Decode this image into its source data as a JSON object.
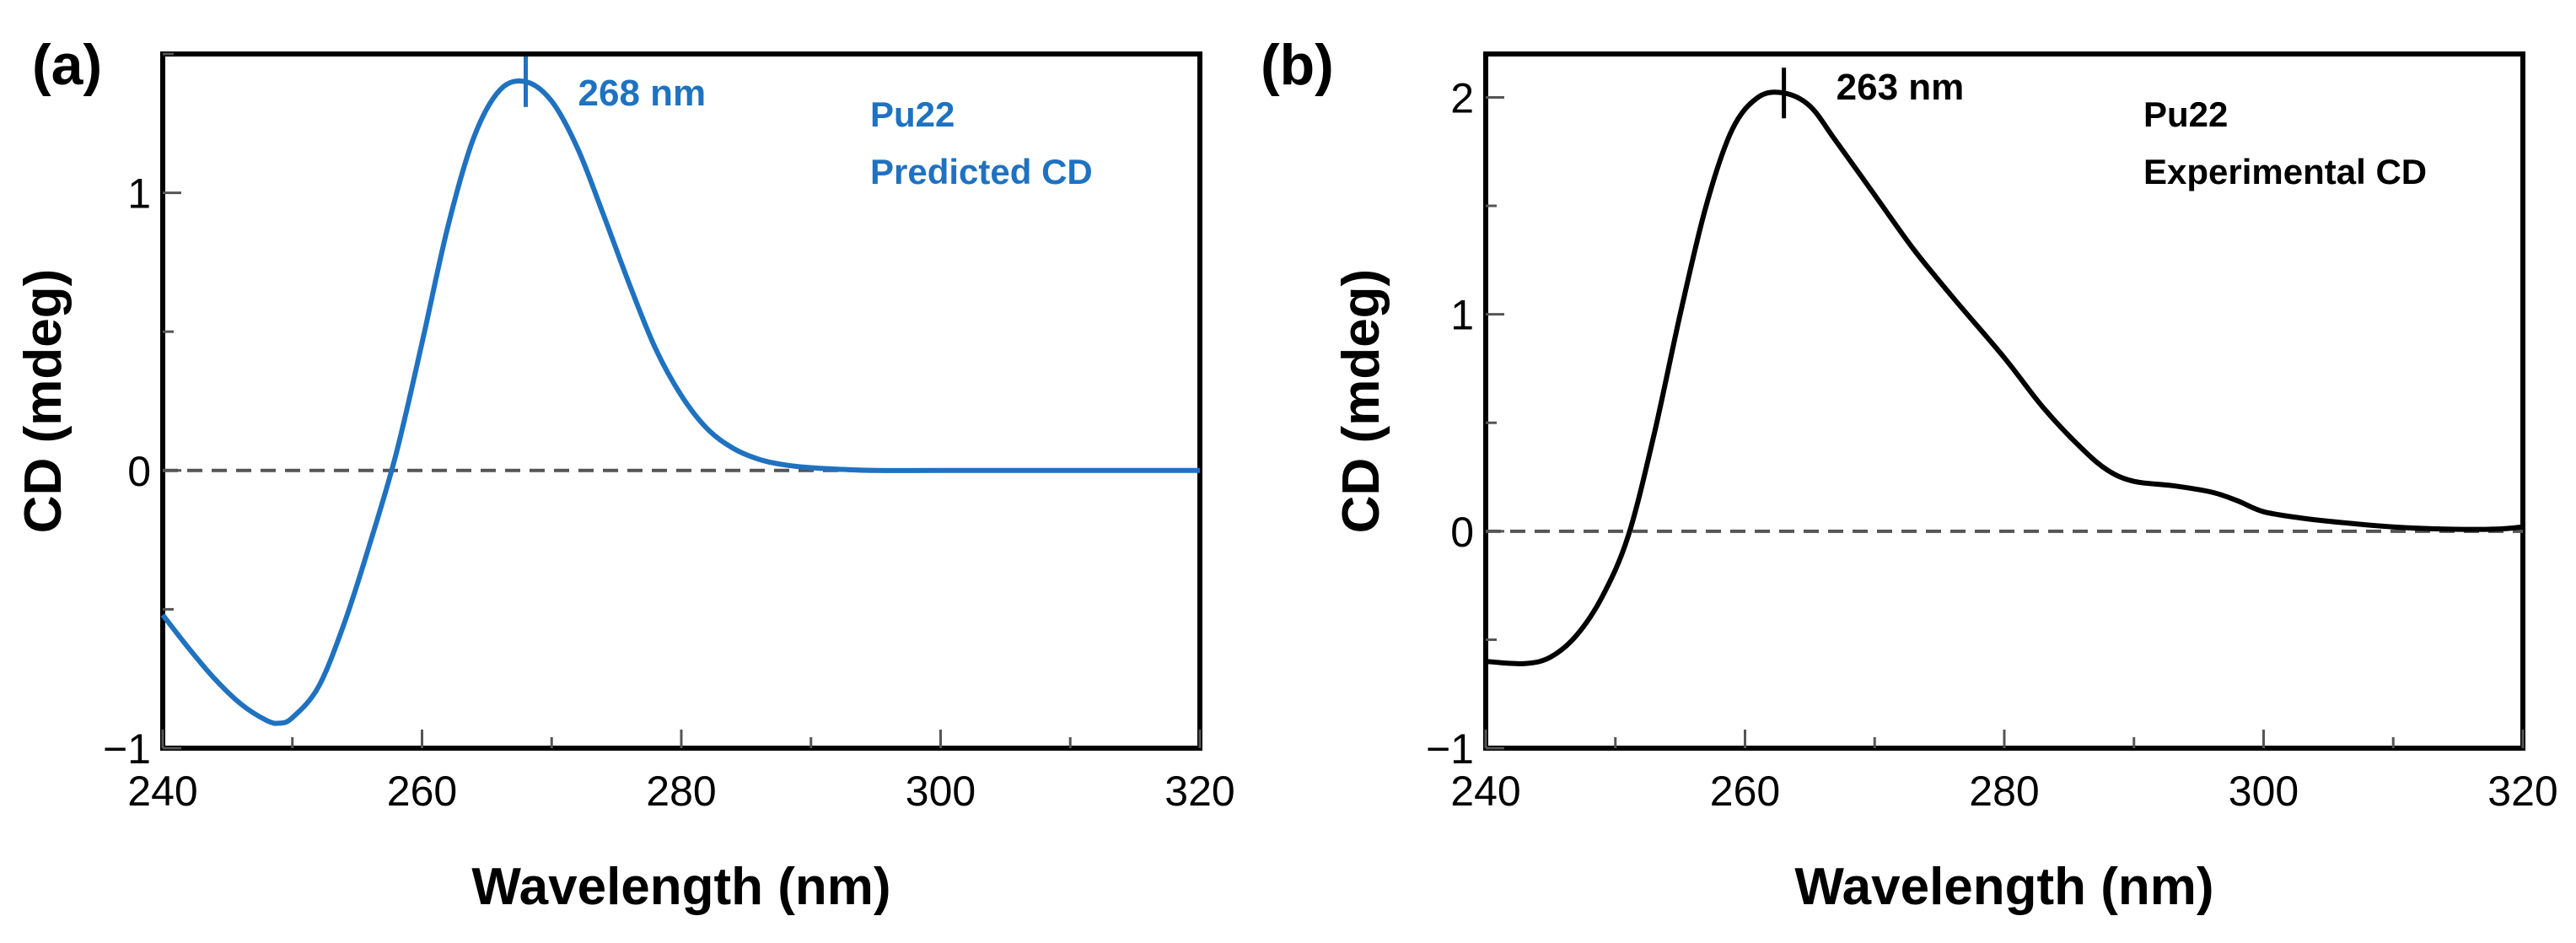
{
  "chart_data": [
    {
      "type": "line",
      "panel_label": "(a)",
      "xlabel": "Wavelength (nm)",
      "ylabel": "CD (mdeg)",
      "xlim": [
        240,
        320
      ],
      "ylim": [
        -1,
        1.5
      ],
      "xticks": [
        240,
        260,
        280,
        300,
        320
      ],
      "xtick_labels": [
        "240",
        "260",
        "280",
        "300",
        "320"
      ],
      "yticks": [
        -1,
        0,
        1
      ],
      "ytick_labels": [
        "−1",
        "0",
        "1"
      ],
      "line_color": "#1f72c0",
      "peak": {
        "x": 268,
        "y": 1.4,
        "label": "268 nm"
      },
      "legend_lines": [
        "Pu22",
        "Predicted CD"
      ],
      "zero_line": "dashed",
      "series": [
        {
          "name": "Pu22 Predicted CD",
          "x": [
            240,
            242,
            244,
            246,
            248,
            249,
            250,
            252,
            254,
            256,
            258,
            260,
            262,
            264,
            266,
            268,
            270,
            272,
            274,
            276,
            278,
            280,
            282,
            284,
            286,
            288,
            290,
            292,
            295,
            300,
            310,
            320
          ],
          "y": [
            -0.52,
            -0.64,
            -0.75,
            -0.84,
            -0.9,
            -0.91,
            -0.89,
            -0.78,
            -0.55,
            -0.26,
            0.06,
            0.46,
            0.88,
            1.2,
            1.37,
            1.4,
            1.33,
            1.16,
            0.92,
            0.67,
            0.44,
            0.27,
            0.15,
            0.08,
            0.04,
            0.02,
            0.01,
            0.005,
            0,
            0,
            0,
            0
          ]
        }
      ]
    },
    {
      "type": "line",
      "panel_label": "(b)",
      "xlabel": "Wavelength (nm)",
      "ylabel": "CD (mdeg)",
      "xlim": [
        240,
        320
      ],
      "ylim": [
        -1,
        2.2
      ],
      "xticks": [
        240,
        260,
        280,
        300,
        320
      ],
      "xtick_labels": [
        "240",
        "260",
        "280",
        "300",
        "320"
      ],
      "yticks": [
        -1,
        0,
        1,
        2
      ],
      "ytick_labels": [
        "−1",
        "0",
        "1",
        "2"
      ],
      "line_color": "#000000",
      "peak": {
        "x": 263,
        "y": 2.02,
        "label": "263 nm"
      },
      "legend_lines": [
        "Pu22",
        "Experimental CD"
      ],
      "zero_line": "dashed",
      "series": [
        {
          "name": "Pu22 Experimental CD",
          "x": [
            240,
            243,
            245,
            247,
            249,
            251,
            253,
            255,
            257,
            259,
            261,
            263,
            265,
            267,
            270,
            273,
            276,
            280,
            283,
            286,
            288,
            290,
            293,
            296,
            298,
            300,
            303,
            306,
            310,
            314,
            318,
            320
          ],
          "y": [
            -0.6,
            -0.61,
            -0.58,
            -0.48,
            -0.3,
            -0.02,
            0.45,
            1.0,
            1.5,
            1.85,
            2.0,
            2.02,
            1.96,
            1.8,
            1.55,
            1.3,
            1.08,
            0.8,
            0.57,
            0.38,
            0.28,
            0.23,
            0.21,
            0.18,
            0.14,
            0.09,
            0.06,
            0.04,
            0.02,
            0.01,
            0.01,
            0.02
          ]
        }
      ]
    }
  ]
}
